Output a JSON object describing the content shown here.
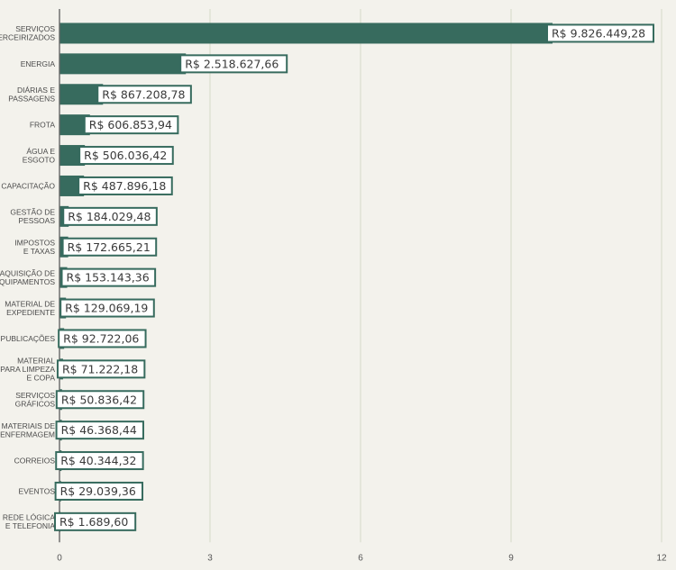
{
  "chart_data": {
    "type": "bar",
    "orientation": "horizontal",
    "categories": [
      [
        "SERVIÇOS",
        "TERCEIRIZADOS"
      ],
      [
        "ENERGIA"
      ],
      [
        "DIÁRIAS E",
        "PASSAGENS"
      ],
      [
        "FROTA"
      ],
      [
        "ÁGUA E",
        "ESGOTO"
      ],
      [
        "CAPACITAÇÃO"
      ],
      [
        "GESTÃO DE",
        "PESSOAS"
      ],
      [
        "IMPOSTOS",
        "E TAXAS"
      ],
      [
        "AQUISIÇÃO DE",
        "EQUIPAMENTOS"
      ],
      [
        "MATERIAL DE",
        "EXPEDIENTE"
      ],
      [
        "PUBLICAÇÕES"
      ],
      [
        "MATERIAL",
        "PARA LIMPEZA",
        "E COPA"
      ],
      [
        "SERVIÇOS",
        "GRÁFICOS"
      ],
      [
        "MATERIAIS DE",
        "ENFERMAGEM"
      ],
      [
        "CORREIOS"
      ],
      [
        "EVENTOS"
      ],
      [
        "REDE LÓGICA",
        "E TELEFONIA"
      ]
    ],
    "values": [
      9826449.28,
      2518627.66,
      867208.78,
      606853.94,
      506036.42,
      487896.18,
      184029.48,
      172665.21,
      153143.36,
      129069.19,
      92722.06,
      71222.18,
      50836.42,
      46368.44,
      40344.32,
      29039.36,
      1689.6
    ],
    "value_labels": [
      "R$ 9.826.449,28",
      "R$ 2.518.627,66",
      "R$ 867.208,78",
      "R$ 606.853,94",
      "R$ 506.036,42",
      "R$ 487.896,18",
      "R$ 184.029,48",
      "R$ 172.665,21",
      "R$ 153.143,36",
      "R$ 129.069,19",
      "R$ 92.722,06",
      "R$ 71.222,18",
      "R$ 50.836,42",
      "R$ 46.368,44",
      "R$ 40.344,32",
      "R$ 29.039,36",
      "R$ 1.689,60"
    ],
    "xlim": [
      0,
      12000000
    ],
    "xticks": [
      0,
      3000000,
      6000000,
      9000000,
      12000000
    ],
    "xtick_labels": [
      "0",
      "3",
      "6",
      "9",
      "12"
    ],
    "grid": true,
    "bar_color": "#376b5e",
    "label_border_color": "#376b5e",
    "label_background": "#ffffff",
    "gridline_color": "#d6d9c8",
    "background": "#f3f2ec"
  }
}
